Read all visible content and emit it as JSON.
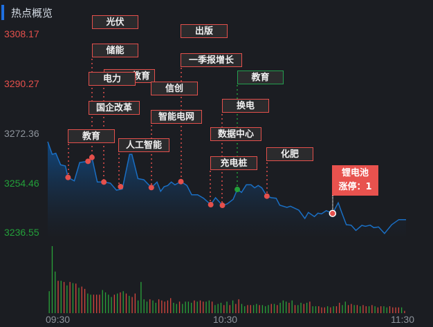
{
  "header": {
    "title": "热点概览"
  },
  "colors": {
    "up": "#e5504c",
    "down": "#23a03a",
    "neutral": "#8e949c",
    "line": "#1a6fc4",
    "accent": "#1f6fe0"
  },
  "y_axis": {
    "labels": [
      "3308.17",
      "3290.27",
      "3272.36",
      "3254.46",
      "3236.55"
    ]
  },
  "x_axis": {
    "labels": [
      "09:30",
      "10:30",
      "11:30"
    ]
  },
  "chart_data": {
    "type": "line",
    "xlabel": "",
    "ylabel": "",
    "x_unit": "minutes since 09:30",
    "ylim": [
      3236.55,
      3308.17
    ],
    "xlim": [
      0,
      120
    ],
    "prev_close": 3272.36,
    "price": [
      [
        0,
        3269.1
      ],
      [
        1.5,
        3264.51
      ],
      [
        2.7,
        3264.92
      ],
      [
        4.3,
        3260.76
      ],
      [
        5.9,
        3260.34
      ],
      [
        6.8,
        3256.17
      ],
      [
        8.9,
        3254.9
      ],
      [
        10.7,
        3261.59
      ],
      [
        13.5,
        3262.01
      ],
      [
        14.8,
        3263.42
      ],
      [
        16.6,
        3254.5
      ],
      [
        18.8,
        3254.5
      ],
      [
        21.0,
        3254.08
      ],
      [
        23.0,
        3251.57
      ],
      [
        25.0,
        3252.0
      ],
      [
        27.4,
        3264.51
      ],
      [
        28.2,
        3264.51
      ],
      [
        30.2,
        3255.75
      ],
      [
        32.2,
        3255.33
      ],
      [
        34.7,
        3252.5
      ],
      [
        36.6,
        3254.5
      ],
      [
        37.8,
        3251.15
      ],
      [
        39.0,
        3252.82
      ],
      [
        40.2,
        3253.25
      ],
      [
        41.4,
        3254.5
      ],
      [
        42.6,
        3253.5
      ],
      [
        44.6,
        3254.65
      ],
      [
        46.6,
        3253.25
      ],
      [
        48.2,
        3249.89
      ],
      [
        50.2,
        3249.89
      ],
      [
        52.2,
        3248.64
      ],
      [
        54.6,
        3246.31
      ],
      [
        56.2,
        3248.82
      ],
      [
        58.5,
        3246.06
      ],
      [
        60.1,
        3246.56
      ],
      [
        62.1,
        3248.24
      ],
      [
        63.5,
        3251.82
      ],
      [
        64.9,
        3250.75
      ],
      [
        66.5,
        3253.5
      ],
      [
        68.1,
        3253.5
      ],
      [
        69.3,
        3252.4
      ],
      [
        70.5,
        3253.25
      ],
      [
        71.7,
        3252.4
      ],
      [
        73.4,
        3249.39
      ],
      [
        74.9,
        3248.82
      ],
      [
        76.5,
        3248.64
      ],
      [
        77.7,
        3246.14
      ],
      [
        80.1,
        3245.31
      ],
      [
        81.3,
        3245.74
      ],
      [
        84.1,
        3244.31
      ],
      [
        86.1,
        3241.3
      ],
      [
        87.3,
        3243.48
      ],
      [
        89.3,
        3241.98
      ],
      [
        90.5,
        3243.23
      ],
      [
        91.7,
        3242.98
      ],
      [
        93.3,
        3244.13
      ],
      [
        95.4,
        3243.13
      ],
      [
        97.3,
        3246.99
      ],
      [
        98.4,
        3243.63
      ],
      [
        100.0,
        3239.05
      ],
      [
        101.6,
        3238.88
      ],
      [
        103.2,
        3236.97
      ],
      [
        105.2,
        3238.8
      ],
      [
        106.4,
        3238.46
      ],
      [
        108.0,
        3238.88
      ],
      [
        109.2,
        3237.97
      ],
      [
        110.8,
        3238.22
      ],
      [
        112.8,
        3235.87
      ],
      [
        115.2,
        3239.05
      ],
      [
        117.6,
        3240.88
      ],
      [
        120,
        3240.88
      ]
    ],
    "markers": [
      {
        "t": 6.8,
        "p": 3256.17,
        "color": "up"
      },
      {
        "t": 13.5,
        "p": 3262.01,
        "color": "up"
      },
      {
        "t": 14.8,
        "p": 3263.42,
        "color": "up"
      },
      {
        "t": 18.8,
        "p": 3254.5,
        "color": "up"
      },
      {
        "t": 24.4,
        "p": 3252.82,
        "color": "up"
      },
      {
        "t": 34.7,
        "p": 3252.5,
        "color": "up"
      },
      {
        "t": 44.6,
        "p": 3254.65,
        "color": "up"
      },
      {
        "t": 54.6,
        "p": 3246.31,
        "color": "up"
      },
      {
        "t": 58.5,
        "p": 3246.06,
        "color": "up"
      },
      {
        "t": 63.5,
        "p": 3251.82,
        "color": "down"
      },
      {
        "t": 73.4,
        "p": 3249.39,
        "color": "up"
      },
      {
        "t": 95.4,
        "p": 3243.13,
        "color": "highlight"
      }
    ],
    "volume": {
      "values": [
        95,
        290,
        180,
        140,
        140,
        135,
        120,
        135,
        130,
        128,
        110,
        115,
        105,
        85,
        80,
        80,
        80,
        80,
        100,
        90,
        80,
        70,
        80,
        85,
        90,
        95,
        85,
        75,
        70,
        85,
        55,
        135,
        60,
        50,
        60,
        55,
        45,
        60,
        55,
        50,
        55,
        65,
        45,
        40,
        50,
        40,
        50,
        50,
        45,
        55,
        50,
        55,
        50,
        50,
        55,
        50,
        35,
        40,
        45,
        35,
        50,
        35,
        55,
        40,
        60,
        40,
        30,
        35,
        35,
        35,
        40,
        35,
        35,
        30,
        35,
        40,
        40,
        35,
        45,
        55,
        50,
        45,
        55,
        35,
        35,
        45,
        40,
        45,
        50,
        30,
        30,
        30,
        25,
        25,
        30,
        25,
        30,
        30,
        45,
        35,
        50,
        35,
        40,
        35,
        35,
        30,
        35,
        30,
        30,
        35,
        30,
        25,
        30,
        30,
        25,
        30,
        25,
        25,
        25,
        25,
        10
      ],
      "direction": [
        -1,
        -1,
        -1,
        1,
        -1,
        1,
        -1,
        1,
        -1,
        1,
        -1,
        1,
        1,
        -1,
        -1,
        1,
        1,
        1,
        -1,
        -1,
        -1,
        -1,
        1,
        -1,
        1,
        -1,
        1,
        -1,
        1,
        1,
        -1,
        -1,
        -1,
        -1,
        1,
        -1,
        -1,
        1,
        1,
        1,
        1,
        1,
        -1,
        -1,
        1,
        -1,
        -1,
        -1,
        -1,
        1,
        -1,
        1,
        1,
        -1,
        -1,
        1,
        -1,
        -1,
        -1,
        1,
        -1,
        1,
        -1,
        1,
        1,
        -1,
        -1,
        1,
        1,
        -1,
        -1,
        1,
        -1,
        -1,
        -1,
        1,
        -1,
        1,
        -1,
        -1,
        -1,
        1,
        -1,
        1,
        -1,
        -1,
        1,
        -1,
        1,
        -1,
        -1,
        1,
        1,
        1,
        -1,
        1,
        -1,
        1,
        1,
        -1,
        -1,
        1,
        1,
        -1,
        1,
        -1,
        1,
        1,
        -1,
        1,
        -1,
        1,
        1,
        -1,
        -1,
        1,
        1,
        1,
        1,
        -1,
        1
      ]
    }
  },
  "tags": [
    {
      "label": "光伏"
    },
    {
      "label": "储能"
    },
    {
      "label": "教育"
    },
    {
      "label": "电力"
    },
    {
      "label": "国企改革"
    },
    {
      "label": "教育"
    },
    {
      "label": "人工智能"
    },
    {
      "label": "信创"
    },
    {
      "label": "智能电网"
    },
    {
      "label": "出版"
    },
    {
      "label": "一季报增长"
    },
    {
      "label": "教育"
    },
    {
      "label": "换电"
    },
    {
      "label": "数据中心"
    },
    {
      "label": "充电桩"
    },
    {
      "label": "化肥"
    }
  ],
  "limit_up": {
    "name": "锂电池",
    "text": "涨停：1"
  }
}
